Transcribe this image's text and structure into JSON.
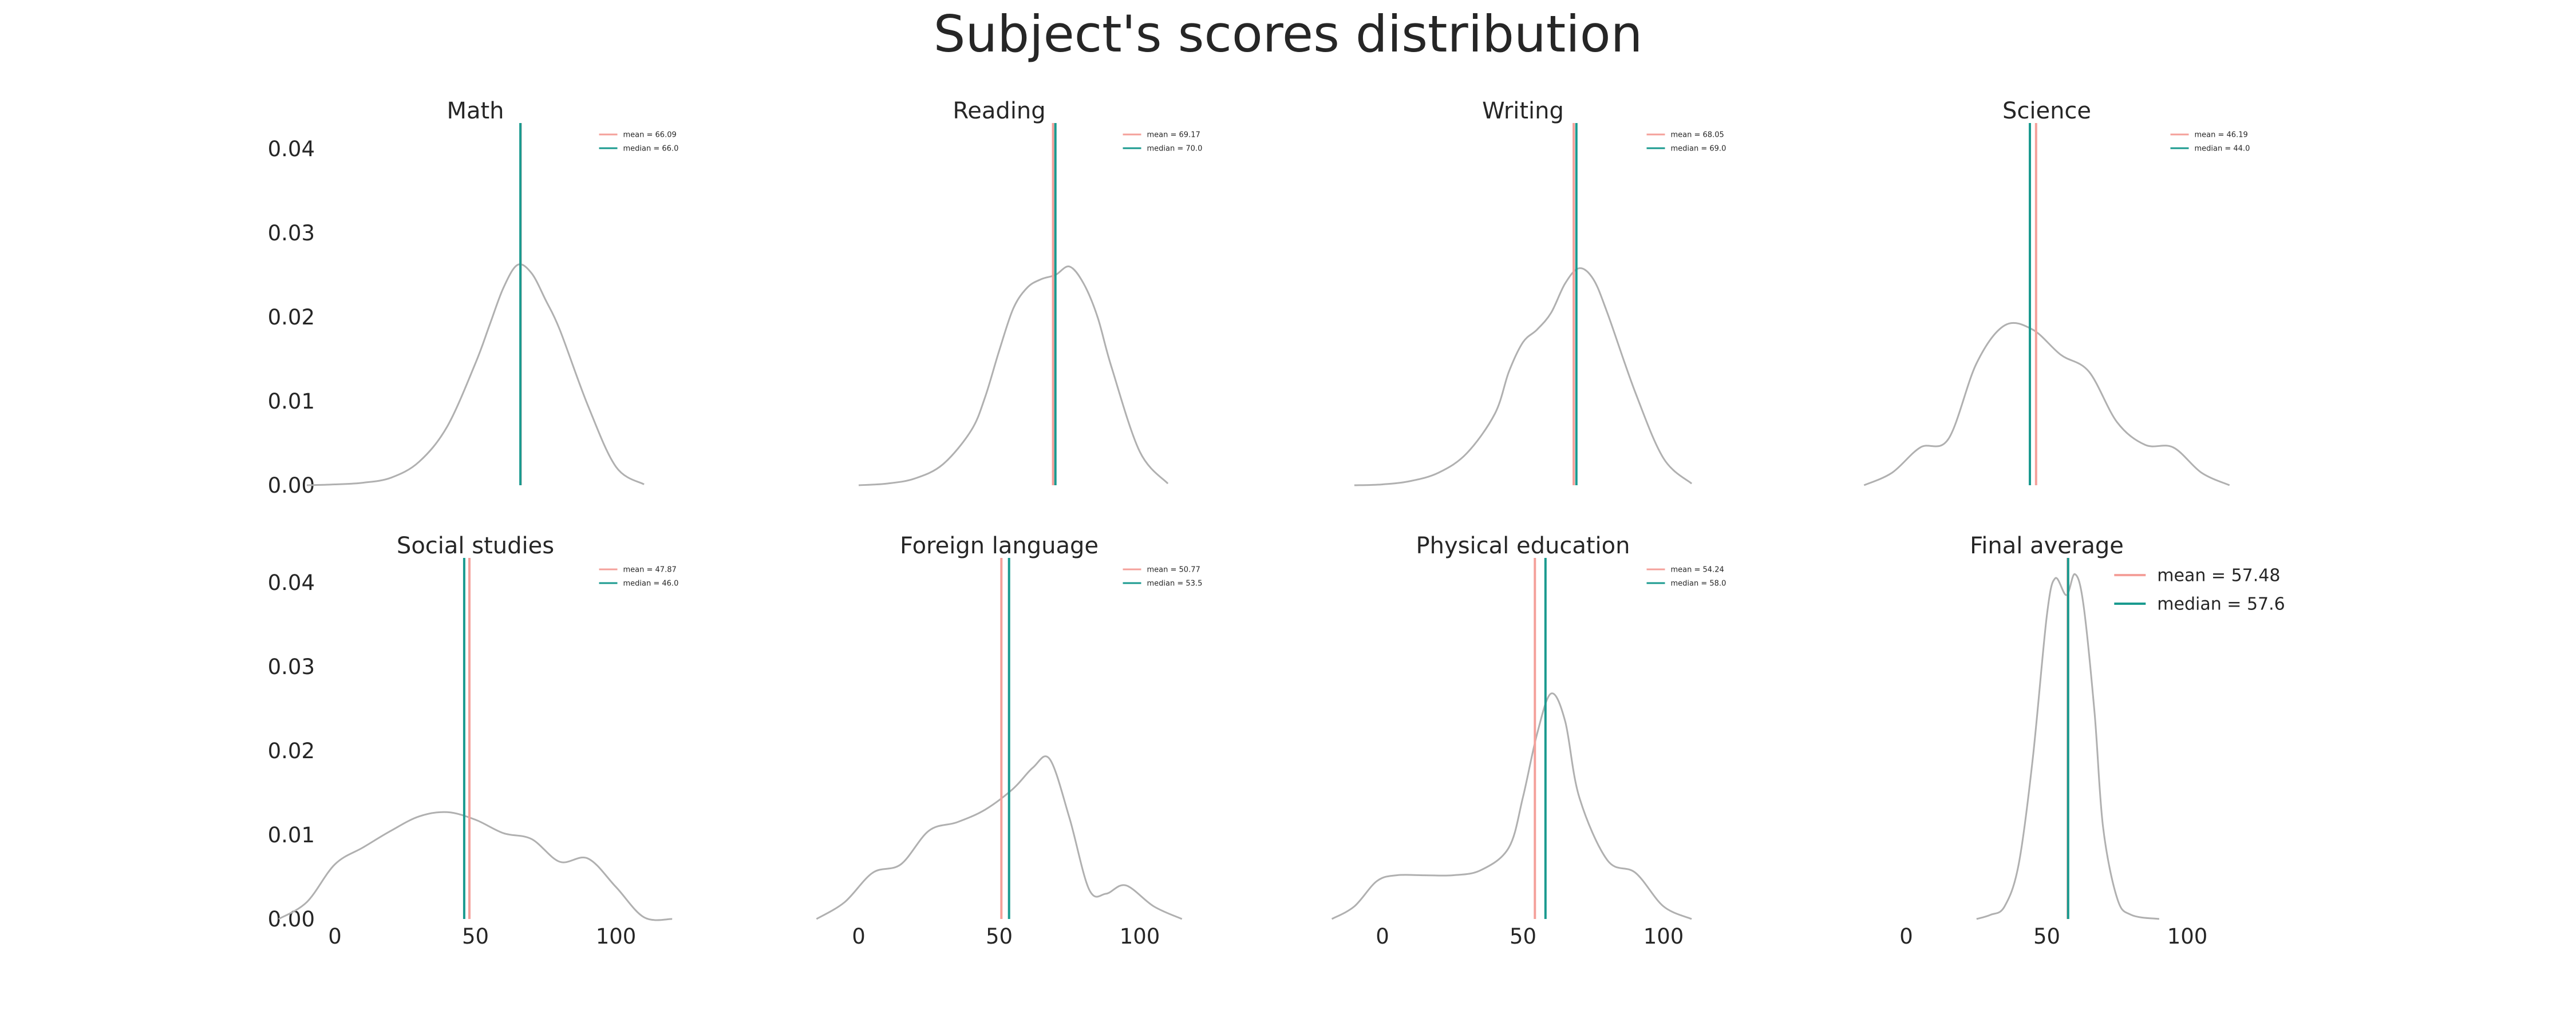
{
  "figure_title": "Subject's scores distribution",
  "colors": {
    "kde": "#b0b0b0",
    "mean": "#f4a09a",
    "median": "#1a9a8f",
    "text": "#262626"
  },
  "chart_data": [
    {
      "type": "line",
      "title": "Math",
      "xlim": [
        -20,
        120
      ],
      "ylim": [
        0,
        0.043
      ],
      "xticks": [],
      "yticks": [
        "0.00",
        "0.01",
        "0.02",
        "0.03",
        "0.04"
      ],
      "mean": 66.09,
      "median": 66.0,
      "legend": [
        "mean = 66.09",
        "median = 66.0"
      ],
      "legend_position": "upper-right-small",
      "series": [
        {
          "x": [
            -10,
            0,
            10,
            20,
            30,
            40,
            50,
            55,
            60,
            65,
            70,
            75,
            80,
            90,
            100,
            110
          ],
          "y": [
            0.0,
            0.0001,
            0.0003,
            0.0009,
            0.0028,
            0.007,
            0.0145,
            0.019,
            0.0235,
            0.0262,
            0.0252,
            0.022,
            0.0185,
            0.0095,
            0.0022,
            0.0001
          ]
        }
      ]
    },
    {
      "type": "line",
      "title": "Reading",
      "xlim": [
        -20,
        120
      ],
      "ylim": [
        0,
        0.043
      ],
      "xticks": [],
      "yticks": [],
      "mean": 69.17,
      "median": 70.0,
      "legend": [
        "mean = 69.17",
        "median = 70.0"
      ],
      "legend_position": "upper-right-small",
      "series": [
        {
          "x": [
            0,
            10,
            20,
            30,
            40,
            45,
            50,
            55,
            60,
            65,
            70,
            75,
            80,
            85,
            90,
            100,
            110
          ],
          "y": [
            0.0,
            0.0002,
            0.0008,
            0.0025,
            0.0065,
            0.0105,
            0.016,
            0.021,
            0.0235,
            0.0245,
            0.025,
            0.026,
            0.024,
            0.02,
            0.014,
            0.004,
            0.0002
          ]
        }
      ]
    },
    {
      "type": "line",
      "title": "Writing",
      "xlim": [
        -20,
        120
      ],
      "ylim": [
        0,
        0.043
      ],
      "xticks": [],
      "yticks": [],
      "mean": 68.05,
      "median": 69.0,
      "legend": [
        "mean = 68.05",
        "median = 69.0"
      ],
      "legend_position": "upper-right-small",
      "series": [
        {
          "x": [
            -10,
            0,
            10,
            20,
            30,
            40,
            45,
            50,
            55,
            60,
            65,
            70,
            75,
            80,
            90,
            100,
            110
          ],
          "y": [
            0.0,
            0.0001,
            0.0005,
            0.0015,
            0.0038,
            0.0085,
            0.0135,
            0.017,
            0.0185,
            0.0205,
            0.024,
            0.0258,
            0.0245,
            0.0205,
            0.011,
            0.0032,
            0.0002
          ]
        }
      ]
    },
    {
      "type": "line",
      "title": "Science",
      "xlim": [
        -20,
        120
      ],
      "ylim": [
        0,
        0.043
      ],
      "xticks": [],
      "yticks": [],
      "mean": 46.19,
      "median": 44.0,
      "legend": [
        "mean = 46.19",
        "median = 44.0"
      ],
      "legend_position": "upper-right-small",
      "series": [
        {
          "x": [
            -15,
            -5,
            5,
            15,
            25,
            35,
            45,
            55,
            65,
            75,
            85,
            95,
            105,
            115
          ],
          "y": [
            0.0,
            0.0015,
            0.0045,
            0.0055,
            0.0145,
            0.019,
            0.0185,
            0.0155,
            0.0135,
            0.0075,
            0.0048,
            0.0045,
            0.0015,
            0.0
          ]
        }
      ]
    },
    {
      "type": "line",
      "title": "Social studies",
      "xlim": [
        -20,
        120
      ],
      "ylim": [
        0,
        0.043
      ],
      "xticks": [
        "0",
        "50",
        "100"
      ],
      "yticks": [
        "0.00",
        "0.01",
        "0.02",
        "0.03",
        "0.04"
      ],
      "mean": 47.87,
      "median": 46.0,
      "legend": [
        "mean = 47.87",
        "median = 46.0"
      ],
      "legend_position": "upper-right-small",
      "series": [
        {
          "x": [
            -20,
            -10,
            0,
            10,
            20,
            30,
            40,
            50,
            60,
            70,
            80,
            90,
            100,
            110,
            120
          ],
          "y": [
            0.0,
            0.002,
            0.0065,
            0.0085,
            0.0105,
            0.0122,
            0.0127,
            0.0118,
            0.0102,
            0.0095,
            0.0068,
            0.0072,
            0.0038,
            0.0002,
            0.0
          ]
        }
      ]
    },
    {
      "type": "line",
      "title": "Foreign language",
      "xlim": [
        -20,
        120
      ],
      "ylim": [
        0,
        0.043
      ],
      "xticks": [
        "0",
        "50",
        "100"
      ],
      "yticks": [],
      "mean": 50.77,
      "median": 53.5,
      "legend": [
        "mean = 50.77",
        "median = 53.5"
      ],
      "legend_position": "upper-right-small",
      "series": [
        {
          "x": [
            -15,
            -5,
            5,
            15,
            25,
            35,
            45,
            55,
            62,
            68,
            75,
            82,
            88,
            95,
            105,
            115
          ],
          "y": [
            0.0,
            0.002,
            0.0055,
            0.0065,
            0.0105,
            0.0115,
            0.013,
            0.0155,
            0.018,
            0.019,
            0.012,
            0.0035,
            0.003,
            0.004,
            0.0015,
            0.0
          ]
        }
      ]
    },
    {
      "type": "line",
      "title": "Physical education",
      "xlim": [
        -20,
        120
      ],
      "ylim": [
        0,
        0.043
      ],
      "xticks": [
        "0",
        "50",
        "100"
      ],
      "yticks": [],
      "mean": 54.24,
      "median": 58.0,
      "legend": [
        "mean = 54.24",
        "median = 58.0"
      ],
      "legend_position": "upper-right-small",
      "series": [
        {
          "x": [
            -18,
            -10,
            -2,
            5,
            15,
            25,
            35,
            45,
            50,
            55,
            60,
            65,
            70,
            80,
            90,
            100,
            110
          ],
          "y": [
            0.0,
            0.0015,
            0.0045,
            0.0052,
            0.0052,
            0.0052,
            0.0058,
            0.0085,
            0.0145,
            0.022,
            0.0268,
            0.0235,
            0.0145,
            0.007,
            0.0055,
            0.0015,
            0.0
          ]
        }
      ]
    },
    {
      "type": "line",
      "title": "Final average",
      "xlim": [
        -20,
        120
      ],
      "ylim": [
        0,
        0.043
      ],
      "xticks": [
        "0",
        "50",
        "100"
      ],
      "yticks": [],
      "mean": 57.48,
      "median": 57.6,
      "legend": [
        "mean = 57.48",
        "median = 57.6"
      ],
      "legend_position": "upper-right-large",
      "series": [
        {
          "x": [
            25,
            30,
            35,
            40,
            45,
            50,
            53,
            57,
            60,
            63,
            67,
            70,
            75,
            80,
            90
          ],
          "y": [
            0.0,
            0.0005,
            0.0015,
            0.0065,
            0.019,
            0.036,
            0.0405,
            0.0385,
            0.041,
            0.0375,
            0.0245,
            0.011,
            0.0025,
            0.0005,
            0.0
          ]
        }
      ]
    }
  ]
}
